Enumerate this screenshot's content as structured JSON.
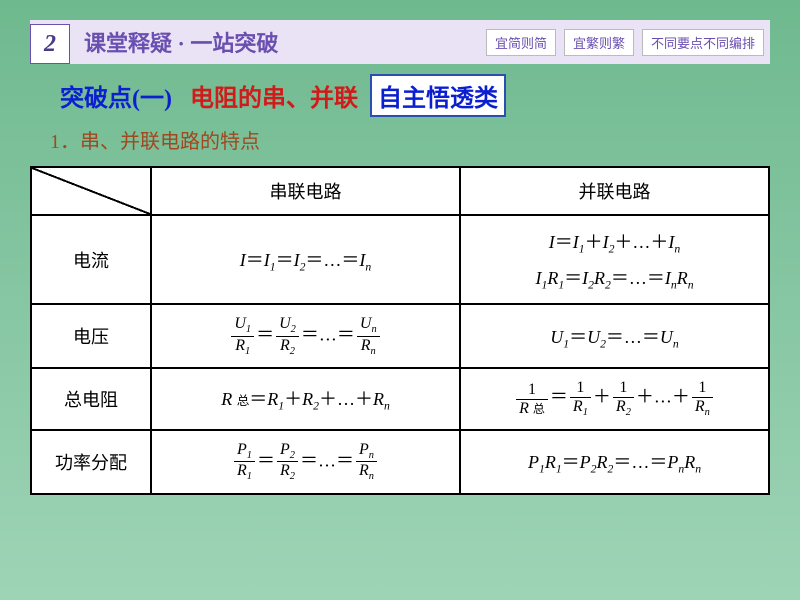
{
  "colors": {
    "slide_bg_top": "#6fb98f",
    "slide_bg_bottom": "#9ed4b6",
    "banner_bg": "#e9e3f5",
    "banner_right_bg": "#e9e3f5",
    "badge_bg": "#ffffff",
    "badge_fg": "#4a3a8a",
    "banner_title_fg": "#6a4fb0",
    "tag_bg": "#ffffff",
    "tag_fg": "#6a4fb0",
    "section_blue": "#0b1fd1",
    "section_red": "#d11a1a",
    "label_box_bg": "#ffffff",
    "label_box_fg": "#0b1fd1",
    "sub_point_fg": "#a04820",
    "table_border": "#000000",
    "table_bg": "#ffffff",
    "table_fg": "#000000"
  },
  "banner": {
    "badge": "2",
    "title": "课堂释疑 · 一站突破",
    "tags": [
      "宜简则简",
      "宜繁则繁",
      "不同要点不同编排"
    ]
  },
  "section": {
    "prefix": "突破点(一)",
    "main": "电阻的串、并联",
    "label": "自主悟透类"
  },
  "subpoint": "1．串、并联电路的特点",
  "table": {
    "headers": {
      "c1": "串联电路",
      "c2": "并联电路"
    },
    "rows": {
      "r1": "电流",
      "r2": "电压",
      "r3": "总电阻",
      "r4": "功率分配"
    },
    "cells": {
      "r1c1_html": "<span class='ital'>I</span>＝<span class='ital'>I</span><span class='sub'>1</span>＝<span class='ital'>I</span><span class='sub'>2</span>＝…＝<span class='ital'>I<span class='sub'>n</span></span>",
      "r1c2a_html": "<span class='ital'>I</span>＝<span class='ital'>I</span><span class='sub'>1</span>＋<span class='ital'>I</span><span class='sub'>2</span>＋…＋<span class='ital'>I<span class='sub'>n</span></span>",
      "r1c2b_html": "<span class='ital'>I</span><span class='sub'>1</span><span class='ital'>R</span><span class='sub'>1</span>＝<span class='ital'>I</span><span class='sub'>2</span><span class='ital'>R</span><span class='sub'>2</span>＝…＝<span class='ital'>I<span class='sub'>n</span>R<span class='sub'>n</span></span>",
      "r2c1_html": "<span class='frac'><span class='num'><span class='ital'>U</span><span class='sub'>1</span></span><span class='den'><span class='ital'>R</span><span class='sub'>1</span></span></span>＝<span class='frac'><span class='num'><span class='ital'>U</span><span class='sub'>2</span></span><span class='den'><span class='ital'>R</span><span class='sub'>2</span></span></span>＝…＝<span class='frac'><span class='num'><span class='ital'>U<span class='sub'>n</span></span></span><span class='den'><span class='ital'>R<span class='sub'>n</span></span></span></span>",
      "r2c2_html": "<span class='ital'>U</span><span class='sub'>1</span>＝<span class='ital'>U</span><span class='sub'>2</span>＝…＝<span class='ital'>U<span class='sub'>n</span></span>",
      "r3c1_html": "<span class='ital'>R</span> <span style='font-size:0.7em'>总</span>＝<span class='ital'>R</span><span class='sub'>1</span>＋<span class='ital'>R</span><span class='sub'>2</span>＋…＋<span class='ital'>R<span class='sub'>n</span></span>",
      "r3c2_html": "<span class='frac'><span class='num'>1</span><span class='den'><span class='ital'>R</span> <span style='font-size:0.75em'>总</span></span></span>＝<span class='frac'><span class='num'>1</span><span class='den'><span class='ital'>R</span><span class='sub'>1</span></span></span>＋<span class='frac'><span class='num'>1</span><span class='den'><span class='ital'>R</span><span class='sub'>2</span></span></span>＋…＋<span class='frac'><span class='num'>1</span><span class='den'><span class='ital'>R<span class='sub'>n</span></span></span></span>",
      "r4c1_html": "<span class='frac'><span class='num'><span class='ital'>P</span><span class='sub'>1</span></span><span class='den'><span class='ital'>R</span><span class='sub'>1</span></span></span>＝<span class='frac'><span class='num'><span class='ital'>P</span><span class='sub'>2</span></span><span class='den'><span class='ital'>R</span><span class='sub'>2</span></span></span>＝…＝<span class='frac'><span class='num'><span class='ital'>P<span class='sub'>n</span></span></span><span class='den'><span class='ital'>R<span class='sub'>n</span></span></span></span>",
      "r4c2_html": "<span class='ital'>P</span><span class='sub'>1</span><span class='ital'>R</span><span class='sub'>1</span>＝<span class='ital'>P</span><span class='sub'>2</span><span class='ital'>R</span><span class='sub'>2</span>＝…＝<span class='ital'>P<span class='sub'>n</span>R<span class='sub'>n</span></span>"
    }
  }
}
